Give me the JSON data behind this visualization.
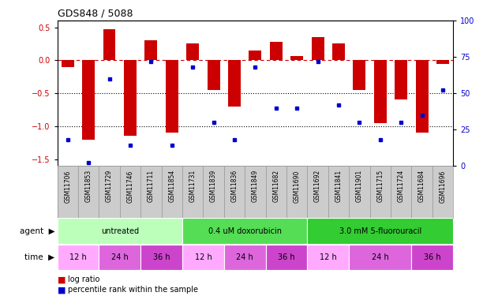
{
  "title": "GDS848 / 5088",
  "samples": [
    "GSM11706",
    "GSM11853",
    "GSM11729",
    "GSM11746",
    "GSM11711",
    "GSM11854",
    "GSM11731",
    "GSM11839",
    "GSM11836",
    "GSM11849",
    "GSM11682",
    "GSM11690",
    "GSM11692",
    "GSM11841",
    "GSM11901",
    "GSM11715",
    "GSM11724",
    "GSM11684",
    "GSM11696"
  ],
  "log_ratio": [
    -0.1,
    -1.2,
    0.47,
    -1.15,
    0.3,
    -1.1,
    0.25,
    -0.45,
    -0.7,
    0.15,
    0.28,
    0.07,
    0.35,
    0.25,
    -0.45,
    -0.95,
    -0.6,
    -1.1,
    -0.05
  ],
  "pct_rank": [
    18,
    2,
    60,
    14,
    72,
    14,
    68,
    30,
    18,
    68,
    40,
    40,
    72,
    42,
    30,
    18,
    30,
    35,
    52
  ],
  "agents": [
    {
      "label": "untreated",
      "start": 0,
      "end": 6,
      "color": "#bbffbb"
    },
    {
      "label": "0.4 uM doxorubicin",
      "start": 6,
      "end": 12,
      "color": "#55dd55"
    },
    {
      "label": "3.0 mM 5-fluorouracil",
      "start": 12,
      "end": 19,
      "color": "#33cc33"
    }
  ],
  "time_blocks": [
    {
      "label": "12 h",
      "start": 0,
      "end": 2,
      "color": "#ffaaff"
    },
    {
      "label": "24 h",
      "start": 2,
      "end": 4,
      "color": "#dd66dd"
    },
    {
      "label": "36 h",
      "start": 4,
      "end": 6,
      "color": "#cc44cc"
    },
    {
      "label": "12 h",
      "start": 6,
      "end": 8,
      "color": "#ffaaff"
    },
    {
      "label": "24 h",
      "start": 8,
      "end": 10,
      "color": "#dd66dd"
    },
    {
      "label": "36 h",
      "start": 10,
      "end": 12,
      "color": "#cc44cc"
    },
    {
      "label": "12 h",
      "start": 12,
      "end": 14,
      "color": "#ffaaff"
    },
    {
      "label": "24 h",
      "start": 14,
      "end": 17,
      "color": "#dd66dd"
    },
    {
      "label": "36 h",
      "start": 17,
      "end": 19,
      "color": "#cc44cc"
    }
  ],
  "bar_color": "#cc0000",
  "dot_color": "#0000cc",
  "ylim_left": [
    -1.6,
    0.6
  ],
  "ylim_right": [
    0,
    100
  ],
  "yticks_left": [
    0.5,
    0.0,
    -0.5,
    -1.0,
    -1.5
  ],
  "yticks_right": [
    100,
    75,
    50,
    25,
    0
  ],
  "sample_bg": "#cccccc",
  "sample_border": "#999999"
}
